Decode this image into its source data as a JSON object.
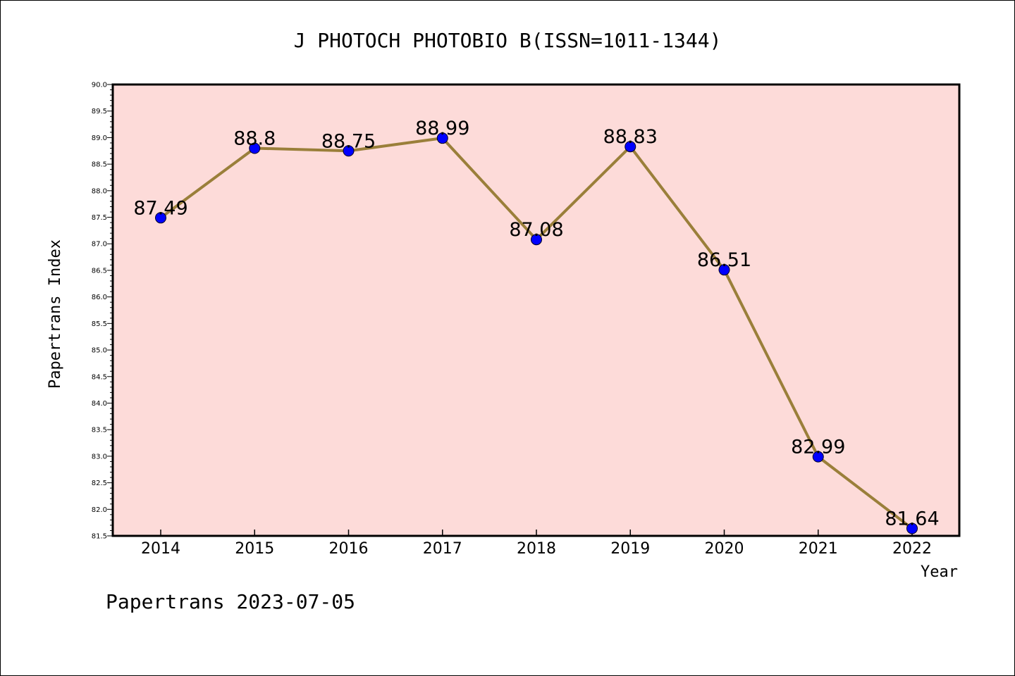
{
  "chart_data": {
    "type": "line",
    "title": "J PHOTOCH PHOTOBIO B(ISSN=1011-1344)",
    "xlabel": "Year",
    "ylabel": "Papertrans Index",
    "footer": "Papertrans 2023-07-05",
    "categories": [
      "2014",
      "2015",
      "2016",
      "2017",
      "2018",
      "2019",
      "2020",
      "2021",
      "2022"
    ],
    "values": [
      87.49,
      88.8,
      88.75,
      88.99,
      87.08,
      88.83,
      86.51,
      82.99,
      81.64
    ],
    "labels": [
      "87.49",
      "88.8",
      "88.75",
      "88.99",
      "87.08",
      "88.83",
      "86.51",
      "82.99",
      "81.64"
    ],
    "ylim": [
      81.5,
      90.0
    ],
    "yticks": [
      "81.5",
      "82.0",
      "82.5",
      "83.0",
      "83.5",
      "84.0",
      "84.5",
      "85.0",
      "85.5",
      "86.0",
      "86.5",
      "87.0",
      "87.5",
      "88.0",
      "88.5",
      "89.0",
      "89.5",
      "90.0"
    ],
    "grid": false,
    "colors": {
      "plot_background": "#fddbd9",
      "line": "#9a7f3a",
      "marker": "#0000ff"
    }
  }
}
